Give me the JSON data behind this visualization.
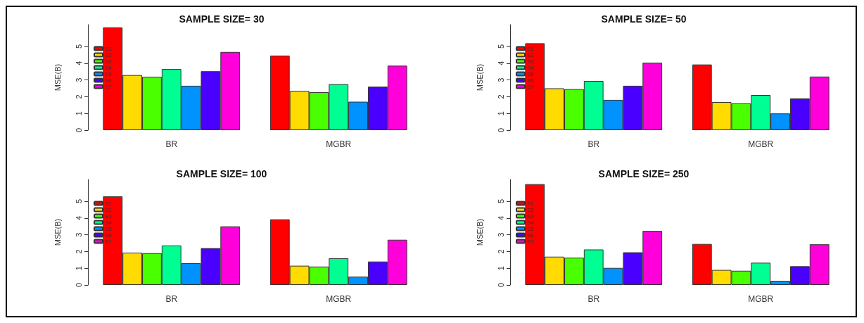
{
  "chart_data": [
    {
      "type": "bar",
      "title": "SAMPLE SIZE= 30",
      "ylabel": "MSE(B)",
      "categories": [
        "BR",
        "MGBR"
      ],
      "ylim": [
        0,
        6.3
      ],
      "yticks": [
        0,
        1,
        2,
        3,
        4,
        5
      ],
      "grid": false,
      "legend": "top left",
      "series": [
        {
          "name": "S1",
          "color": "#ff0000",
          "values": [
            6.13,
            4.45
          ]
        },
        {
          "name": "S2",
          "color": "#ffdb00",
          "values": [
            3.29,
            2.35
          ]
        },
        {
          "name": "S3",
          "color": "#49ff00",
          "values": [
            3.19,
            2.27
          ]
        },
        {
          "name": "S4",
          "color": "#00ff92",
          "values": [
            3.65,
            2.75
          ]
        },
        {
          "name": "S5",
          "color": "#0092ff",
          "values": [
            2.65,
            1.7
          ]
        },
        {
          "name": "S6",
          "color": "#4900ff",
          "values": [
            3.52,
            2.6
          ]
        },
        {
          "name": "S7",
          "color": "#ff00db",
          "values": [
            4.67,
            3.85
          ]
        }
      ]
    },
    {
      "type": "bar",
      "title": "SAMPLE SIZE= 50",
      "ylabel": "MSE(B)",
      "categories": [
        "BR",
        "MGBR"
      ],
      "ylim": [
        0,
        6.3
      ],
      "yticks": [
        0,
        1,
        2,
        3,
        4,
        5
      ],
      "grid": false,
      "legend": "top left",
      "series": [
        {
          "name": "S1",
          "color": "#ff0000",
          "values": [
            5.19,
            3.92
          ]
        },
        {
          "name": "S2",
          "color": "#ffdb00",
          "values": [
            2.5,
            1.68
          ]
        },
        {
          "name": "S3",
          "color": "#49ff00",
          "values": [
            2.45,
            1.6
          ]
        },
        {
          "name": "S4",
          "color": "#00ff92",
          "values": [
            2.94,
            2.1
          ]
        },
        {
          "name": "S5",
          "color": "#0092ff",
          "values": [
            1.81,
            1.0
          ]
        },
        {
          "name": "S6",
          "color": "#4900ff",
          "values": [
            2.65,
            1.9
          ]
        },
        {
          "name": "S7",
          "color": "#ff00db",
          "values": [
            4.03,
            3.2
          ]
        }
      ]
    },
    {
      "type": "bar",
      "title": "SAMPLE SIZE= 100",
      "ylabel": "MSE(B)",
      "categories": [
        "BR",
        "MGBR"
      ],
      "ylim": [
        0,
        6.3
      ],
      "yticks": [
        0,
        1,
        2,
        3,
        4,
        5
      ],
      "grid": false,
      "legend": "top left",
      "series": [
        {
          "name": "S1",
          "color": "#ff0000",
          "values": [
            5.29,
            3.92
          ]
        },
        {
          "name": "S2",
          "color": "#ffdb00",
          "values": [
            1.93,
            1.15
          ]
        },
        {
          "name": "S3",
          "color": "#49ff00",
          "values": [
            1.9,
            1.1
          ]
        },
        {
          "name": "S4",
          "color": "#00ff92",
          "values": [
            2.36,
            1.6
          ]
        },
        {
          "name": "S5",
          "color": "#0092ff",
          "values": [
            1.3,
            0.5
          ]
        },
        {
          "name": "S6",
          "color": "#4900ff",
          "values": [
            2.2,
            1.4
          ]
        },
        {
          "name": "S7",
          "color": "#ff00db",
          "values": [
            3.5,
            2.7
          ]
        }
      ]
    },
    {
      "type": "bar",
      "title": "SAMPLE SIZE= 250",
      "ylabel": "MSE(B)",
      "categories": [
        "BR",
        "MGBR"
      ],
      "ylim": [
        0,
        6.3
      ],
      "yticks": [
        0,
        1,
        2,
        3,
        4,
        5
      ],
      "grid": false,
      "legend": "top left",
      "series": [
        {
          "name": "S1",
          "color": "#ff0000",
          "values": [
            6.02,
            2.45
          ]
        },
        {
          "name": "S2",
          "color": "#ffdb00",
          "values": [
            1.69,
            0.9
          ]
        },
        {
          "name": "S3",
          "color": "#49ff00",
          "values": [
            1.63,
            0.85
          ]
        },
        {
          "name": "S4",
          "color": "#00ff92",
          "values": [
            2.12,
            1.33
          ]
        },
        {
          "name": "S5",
          "color": "#0092ff",
          "values": [
            1.02,
            0.25
          ]
        },
        {
          "name": "S6",
          "color": "#4900ff",
          "values": [
            1.95,
            1.12
          ]
        },
        {
          "name": "S7",
          "color": "#ff00db",
          "values": [
            3.23,
            2.43
          ]
        }
      ]
    }
  ]
}
